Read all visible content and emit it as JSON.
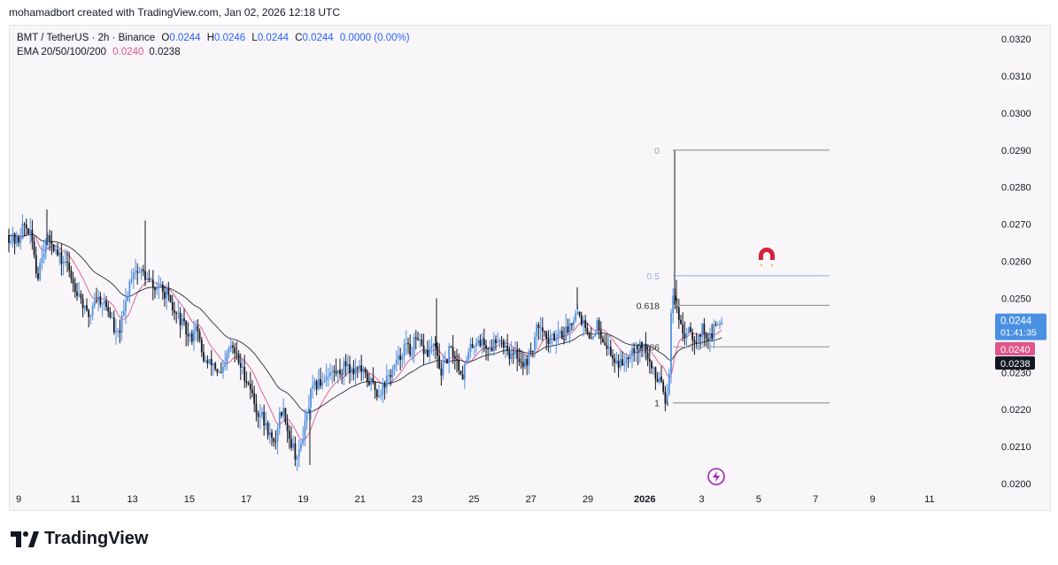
{
  "credit": "mohamadbort created with TradingView.com, Jan 02, 2026 12:18 UTC",
  "legend": {
    "symbol": "BMT / TetherUS · 2h · Binance",
    "o_label": "O",
    "o_value": "0.0244",
    "h_label": "H",
    "h_value": "0.0246",
    "l_label": "L",
    "l_value": "0.0244",
    "c_label": "C",
    "c_value": "0.0244",
    "change": "0.0000 (0.00%)",
    "ema_label": "EMA 20/50/100/200",
    "ema_fast": "0.0240",
    "ema_slow": "0.0238"
  },
  "footer": {
    "brand": "TradingView"
  },
  "colors": {
    "up": "#4f8fe0",
    "down": "#131722",
    "ema_fast": "#e0558a",
    "ema_slow": "#131722",
    "fib_line": "#9e9e9e",
    "fib_half": "#2f80ed",
    "price_tag": "#4a90e2"
  },
  "icons": {
    "magnet": "magnet-icon",
    "lightning": "lightning-icon"
  },
  "chart_data": {
    "type": "candlestick",
    "y_ticks": [
      "0.0320",
      "0.0310",
      "0.0300",
      "0.0290",
      "0.0280",
      "0.0270",
      "0.0260",
      "0.0250",
      "0.0240",
      "0.0230",
      "0.0220",
      "0.0210",
      "0.0200"
    ],
    "y_range": [
      0.02,
      0.032
    ],
    "x_ticks": [
      "9",
      "11",
      "13",
      "15",
      "17",
      "19",
      "21",
      "23",
      "25",
      "27",
      "29",
      "2026",
      "3",
      "5",
      "7",
      "9",
      "11"
    ],
    "price_tag": {
      "price": "0.0244",
      "countdown": "01:41:35"
    },
    "ema_fast_tag": "0.0240",
    "ema_slow_tag": "0.0238",
    "fib_levels": [
      {
        "label": "0",
        "price": 0.029
      },
      {
        "label": "0.5",
        "price": 0.02561
      },
      {
        "label": "0.618",
        "price": 0.02481
      },
      {
        "label": "0.786",
        "price": 0.02369
      },
      {
        "label": "1",
        "price": 0.02218
      }
    ],
    "price_path": [
      [
        0,
        0.0267
      ],
      [
        12,
        0.0265
      ],
      [
        19,
        0.027
      ],
      [
        25,
        0.0268
      ],
      [
        30,
        0.0264
      ],
      [
        34,
        0.0255
      ],
      [
        39,
        0.0262
      ],
      [
        44,
        0.0265
      ],
      [
        50,
        0.0266
      ],
      [
        56,
        0.0262
      ],
      [
        62,
        0.026
      ],
      [
        66,
        0.026
      ],
      [
        71,
        0.0257
      ],
      [
        75,
        0.0254
      ],
      [
        80,
        0.0252
      ],
      [
        84,
        0.025
      ],
      [
        86,
        0.0248
      ],
      [
        89,
        0.0246
      ],
      [
        94,
        0.0245
      ],
      [
        98,
        0.025
      ],
      [
        103,
        0.025
      ],
      [
        109,
        0.0249
      ],
      [
        114,
        0.0247
      ],
      [
        119,
        0.0244
      ],
      [
        122,
        0.024
      ],
      [
        125,
        0.024
      ],
      [
        128,
        0.0242
      ],
      [
        133,
        0.0247
      ],
      [
        138,
        0.0254
      ],
      [
        143,
        0.0258
      ],
      [
        148,
        0.0257
      ],
      [
        154,
        0.0257
      ],
      [
        158,
        0.0255
      ],
      [
        163,
        0.0254
      ],
      [
        167,
        0.0252
      ],
      [
        171,
        0.0254
      ],
      [
        176,
        0.0251
      ],
      [
        180,
        0.0252
      ],
      [
        184,
        0.0248
      ],
      [
        189,
        0.0246
      ],
      [
        194,
        0.0245
      ],
      [
        198,
        0.0243
      ],
      [
        201,
        0.0242
      ],
      [
        205,
        0.0239
      ],
      [
        210,
        0.024
      ],
      [
        213,
        0.0244
      ],
      [
        216,
        0.024
      ],
      [
        220,
        0.0235
      ],
      [
        224,
        0.0233
      ],
      [
        228,
        0.0232
      ],
      [
        232,
        0.0233
      ],
      [
        236,
        0.0231
      ],
      [
        241,
        0.0229
      ],
      [
        246,
        0.0231
      ],
      [
        249,
        0.0235
      ],
      [
        253,
        0.0237
      ],
      [
        258,
        0.0235
      ],
      [
        263,
        0.0232
      ],
      [
        267,
        0.023
      ],
      [
        271,
        0.0228
      ],
      [
        275,
        0.0226
      ],
      [
        279,
        0.0222
      ],
      [
        283,
        0.0219
      ],
      [
        287,
        0.0219
      ],
      [
        291,
        0.0216
      ],
      [
        296,
        0.0214
      ],
      [
        301,
        0.021
      ],
      [
        304,
        0.0212
      ],
      [
        307,
        0.0218
      ],
      [
        311,
        0.022
      ],
      [
        315,
        0.0218
      ],
      [
        318,
        0.0213
      ],
      [
        323,
        0.021
      ],
      [
        327,
        0.0207
      ],
      [
        330,
        0.0208
      ],
      [
        334,
        0.0213
      ],
      [
        337,
        0.0216
      ],
      [
        340,
        0.022
      ],
      [
        343,
        0.0224
      ],
      [
        347,
        0.0226
      ],
      [
        352,
        0.0227
      ],
      [
        357,
        0.0228
      ],
      [
        362,
        0.023
      ],
      [
        368,
        0.023
      ],
      [
        374,
        0.023
      ],
      [
        379,
        0.0231
      ],
      [
        384,
        0.0233
      ],
      [
        390,
        0.023
      ],
      [
        396,
        0.0232
      ],
      [
        401,
        0.023
      ],
      [
        407,
        0.0228
      ],
      [
        413,
        0.0227
      ],
      [
        419,
        0.0224
      ],
      [
        424,
        0.0226
      ],
      [
        429,
        0.0228
      ],
      [
        434,
        0.023
      ],
      [
        439,
        0.0232
      ],
      [
        444,
        0.0234
      ],
      [
        448,
        0.0237
      ],
      [
        452,
        0.0237
      ],
      [
        456,
        0.0235
      ],
      [
        460,
        0.0238
      ],
      [
        465,
        0.0238
      ],
      [
        470,
        0.0236
      ],
      [
        476,
        0.0235
      ],
      [
        481,
        0.0238
      ],
      [
        486,
        0.0234
      ],
      [
        490,
        0.023
      ],
      [
        495,
        0.0232
      ],
      [
        500,
        0.0236
      ],
      [
        505,
        0.0235
      ],
      [
        510,
        0.0232
      ],
      [
        514,
        0.0229
      ],
      [
        519,
        0.0233
      ],
      [
        523,
        0.0236
      ],
      [
        527,
        0.0238
      ],
      [
        532,
        0.0239
      ],
      [
        537,
        0.0238
      ],
      [
        542,
        0.0237
      ],
      [
        546,
        0.0236
      ],
      [
        550,
        0.0238
      ],
      [
        555,
        0.024
      ],
      [
        560,
        0.0238
      ],
      [
        565,
        0.0237
      ],
      [
        569,
        0.0234
      ],
      [
        574,
        0.0235
      ],
      [
        579,
        0.0234
      ],
      [
        584,
        0.0232
      ],
      [
        589,
        0.0234
      ],
      [
        594,
        0.0237
      ],
      [
        598,
        0.0241
      ],
      [
        602,
        0.0244
      ],
      [
        606,
        0.0242
      ],
      [
        610,
        0.0238
      ],
      [
        615,
        0.0239
      ],
      [
        619,
        0.024
      ],
      [
        624,
        0.0241
      ],
      [
        629,
        0.024
      ],
      [
        634,
        0.0242
      ],
      [
        638,
        0.0244
      ],
      [
        642,
        0.0247
      ],
      [
        646,
        0.0246
      ],
      [
        650,
        0.0244
      ],
      [
        654,
        0.0241
      ],
      [
        658,
        0.0238
      ],
      [
        662,
        0.024
      ],
      [
        666,
        0.0243
      ],
      [
        669,
        0.0242
      ],
      [
        672,
        0.024
      ],
      [
        676,
        0.0238
      ],
      [
        680,
        0.0236
      ],
      [
        684,
        0.0234
      ],
      [
        689,
        0.0233
      ],
      [
        694,
        0.0232
      ],
      [
        699,
        0.0234
      ],
      [
        704,
        0.0236
      ],
      [
        708,
        0.0237
      ],
      [
        712,
        0.0236
      ],
      [
        716,
        0.0238
      ],
      [
        720,
        0.0237
      ],
      [
        723,
        0.0234
      ],
      [
        727,
        0.0232
      ],
      [
        730,
        0.023
      ],
      [
        734,
        0.0228
      ],
      [
        738,
        0.023
      ],
      [
        741,
        0.0226
      ],
      [
        744,
        0.0222
      ],
      [
        748,
        0.023
      ],
      [
        750,
        0.0247
      ],
      [
        753,
        0.025
      ],
      [
        756,
        0.0248
      ],
      [
        759,
        0.0243
      ],
      [
        762,
        0.0241
      ],
      [
        766,
        0.024
      ],
      [
        770,
        0.0243
      ],
      [
        774,
        0.024
      ],
      [
        778,
        0.0239
      ],
      [
        782,
        0.024
      ],
      [
        786,
        0.0242
      ],
      [
        790,
        0.024
      ],
      [
        794,
        0.0239
      ],
      [
        798,
        0.0241
      ],
      [
        802,
        0.0243
      ],
      [
        806,
        0.0244
      ]
    ],
    "volatile_spots": [
      [
        752,
        0.029
      ],
      [
        754,
        0.0255
      ],
      [
        642,
        0.0253
      ],
      [
        483,
        0.025
      ],
      [
        154,
        0.0271
      ],
      [
        43,
        0.0274
      ],
      [
        340,
        0.0205
      ],
      [
        744,
        0.0221
      ]
    ]
  }
}
